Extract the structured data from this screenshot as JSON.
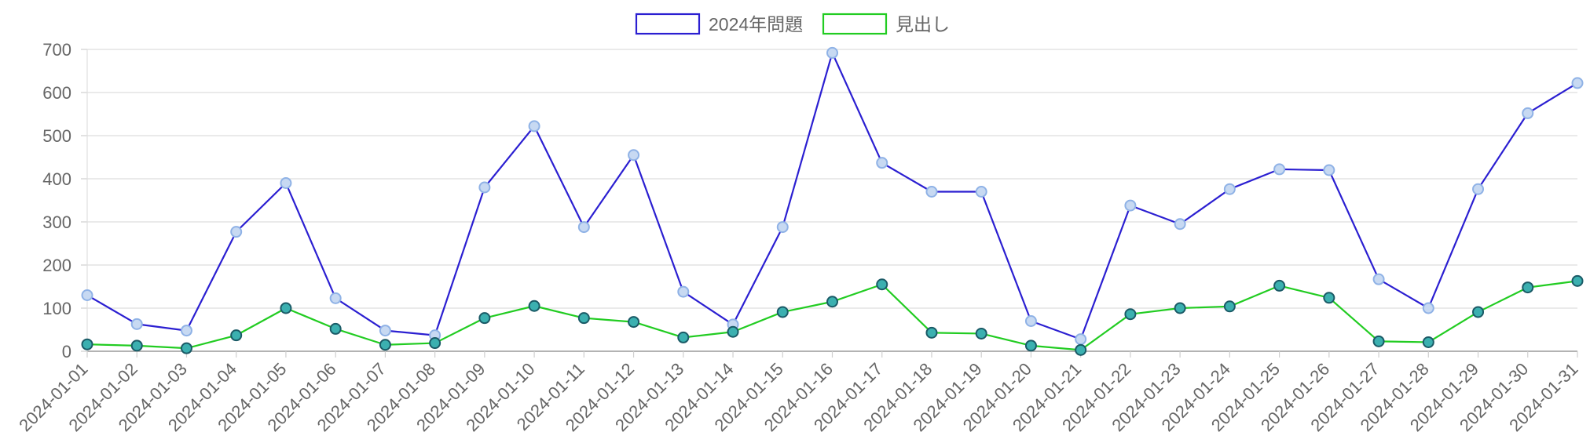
{
  "chart_data": {
    "type": "line",
    "x": [
      "2024-01-01",
      "2024-01-02",
      "2024-01-03",
      "2024-01-04",
      "2024-01-05",
      "2024-01-06",
      "2024-01-07",
      "2024-01-08",
      "2024-01-09",
      "2024-01-10",
      "2024-01-11",
      "2024-01-12",
      "2024-01-13",
      "2024-01-14",
      "2024-01-15",
      "2024-01-16",
      "2024-01-17",
      "2024-01-18",
      "2024-01-19",
      "2024-01-20",
      "2024-01-21",
      "2024-01-22",
      "2024-01-23",
      "2024-01-24",
      "2024-01-25",
      "2024-01-26",
      "2024-01-27",
      "2024-01-28",
      "2024-01-29",
      "2024-01-30",
      "2024-01-31"
    ],
    "series": [
      {
        "name": "2024年問題",
        "color": "#2b1fd1",
        "marker_fill": "#c7d9f2",
        "marker_stroke": "#8fb2e6",
        "values": [
          130,
          63,
          48,
          277,
          390,
          123,
          48,
          37,
          380,
          522,
          288,
          455,
          138,
          62,
          288,
          692,
          437,
          370,
          370,
          70,
          28,
          338,
          295,
          376,
          422,
          420,
          167,
          100,
          376,
          552,
          622
        ]
      },
      {
        "name": "見出し",
        "color": "#22cc22",
        "marker_fill": "#3bb0b0",
        "marker_stroke": "#1a5a66",
        "values": [
          16,
          13,
          7,
          37,
          100,
          52,
          15,
          19,
          77,
          105,
          77,
          68,
          32,
          45,
          91,
          115,
          155,
          43,
          41,
          13,
          3,
          86,
          100,
          104,
          152,
          124,
          23,
          21,
          91,
          148,
          163
        ]
      }
    ],
    "ylim": [
      0,
      700
    ],
    "yticks": [
      "0",
      "100",
      "200",
      "300",
      "400",
      "500",
      "600",
      "700"
    ],
    "grid": true,
    "legend_position": "top-center"
  }
}
